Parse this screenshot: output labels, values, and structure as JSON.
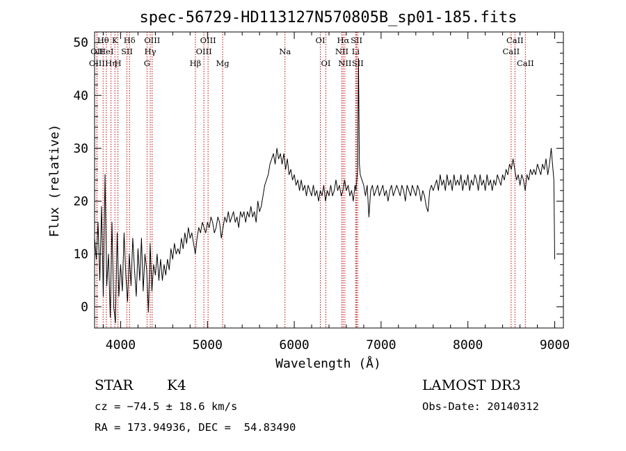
{
  "chart_data": {
    "type": "line",
    "title": "spec-56729-HD113127N570805B_sp01-185.fits",
    "xlabel": "Wavelength (Å)",
    "ylabel": "Flux (relative)",
    "xlim": [
      3700,
      9100
    ],
    "ylim": [
      -4,
      52
    ],
    "xticks": [
      "4000",
      "5000",
      "6000",
      "7000",
      "8000",
      "9000"
    ],
    "yticks": [
      "0",
      "10",
      "20",
      "30",
      "40",
      "50"
    ],
    "grid": false,
    "series": [
      {
        "points": [
          [
            3700,
            13
          ],
          [
            3720,
            9
          ],
          [
            3740,
            16
          ],
          [
            3760,
            5
          ],
          [
            3780,
            19
          ],
          [
            3800,
            2
          ],
          [
            3820,
            25
          ],
          [
            3840,
            4
          ],
          [
            3860,
            10
          ],
          [
            3880,
            -2
          ],
          [
            3900,
            16
          ],
          [
            3920,
            0
          ],
          [
            3940,
            -3
          ],
          [
            3960,
            14
          ],
          [
            3980,
            2
          ],
          [
            4000,
            8
          ],
          [
            4020,
            3
          ],
          [
            4040,
            14
          ],
          [
            4060,
            6
          ],
          [
            4080,
            1
          ],
          [
            4100,
            10
          ],
          [
            4120,
            4
          ],
          [
            4140,
            13
          ],
          [
            4160,
            7
          ],
          [
            4180,
            2
          ],
          [
            4200,
            11
          ],
          [
            4220,
            5
          ],
          [
            4240,
            13
          ],
          [
            4260,
            3
          ],
          [
            4280,
            10
          ],
          [
            4300,
            7
          ],
          [
            4320,
            -1
          ],
          [
            4340,
            12
          ],
          [
            4360,
            3
          ],
          [
            4380,
            8
          ],
          [
            4400,
            6
          ],
          [
            4420,
            10
          ],
          [
            4440,
            5
          ],
          [
            4460,
            9
          ],
          [
            4480,
            5
          ],
          [
            4500,
            8
          ],
          [
            4520,
            6
          ],
          [
            4540,
            9
          ],
          [
            4560,
            7
          ],
          [
            4580,
            11
          ],
          [
            4600,
            9
          ],
          [
            4620,
            12
          ],
          [
            4640,
            10
          ],
          [
            4660,
            11
          ],
          [
            4680,
            10
          ],
          [
            4700,
            13
          ],
          [
            4720,
            11
          ],
          [
            4740,
            14
          ],
          [
            4760,
            12
          ],
          [
            4780,
            15
          ],
          [
            4800,
            13
          ],
          [
            4820,
            14
          ],
          [
            4840,
            12
          ],
          [
            4860,
            10
          ],
          [
            4880,
            13
          ],
          [
            4900,
            15
          ],
          [
            4920,
            14
          ],
          [
            4940,
            16
          ],
          [
            4960,
            15
          ],
          [
            4980,
            14
          ],
          [
            5000,
            16
          ],
          [
            5020,
            15
          ],
          [
            5040,
            17
          ],
          [
            5060,
            16
          ],
          [
            5080,
            14
          ],
          [
            5100,
            15
          ],
          [
            5120,
            17
          ],
          [
            5140,
            16
          ],
          [
            5160,
            13
          ],
          [
            5180,
            15
          ],
          [
            5200,
            17
          ],
          [
            5220,
            16
          ],
          [
            5240,
            18
          ],
          [
            5260,
            16
          ],
          [
            5280,
            17
          ],
          [
            5300,
            18
          ],
          [
            5320,
            16
          ],
          [
            5340,
            17
          ],
          [
            5360,
            15
          ],
          [
            5380,
            18
          ],
          [
            5400,
            17
          ],
          [
            5420,
            18
          ],
          [
            5440,
            16
          ],
          [
            5460,
            18
          ],
          [
            5480,
            17
          ],
          [
            5500,
            19
          ],
          [
            5520,
            17
          ],
          [
            5540,
            18
          ],
          [
            5560,
            16
          ],
          [
            5580,
            20
          ],
          [
            5600,
            18
          ],
          [
            5620,
            19
          ],
          [
            5640,
            21
          ],
          [
            5660,
            23
          ],
          [
            5680,
            24
          ],
          [
            5700,
            25
          ],
          [
            5720,
            27
          ],
          [
            5740,
            28
          ],
          [
            5760,
            29
          ],
          [
            5780,
            27
          ],
          [
            5800,
            30
          ],
          [
            5820,
            28
          ],
          [
            5840,
            29
          ],
          [
            5860,
            27
          ],
          [
            5880,
            29
          ],
          [
            5900,
            26
          ],
          [
            5920,
            28
          ],
          [
            5940,
            25
          ],
          [
            5960,
            26
          ],
          [
            5980,
            24
          ],
          [
            6000,
            25
          ],
          [
            6020,
            23
          ],
          [
            6040,
            24
          ],
          [
            6060,
            22
          ],
          [
            6080,
            24
          ],
          [
            6100,
            22
          ],
          [
            6120,
            23
          ],
          [
            6140,
            21
          ],
          [
            6160,
            23
          ],
          [
            6180,
            22
          ],
          [
            6200,
            21
          ],
          [
            6220,
            23
          ],
          [
            6240,
            21
          ],
          [
            6260,
            22
          ],
          [
            6280,
            20
          ],
          [
            6300,
            22
          ],
          [
            6320,
            21
          ],
          [
            6340,
            23
          ],
          [
            6360,
            20
          ],
          [
            6380,
            22
          ],
          [
            6400,
            21
          ],
          [
            6420,
            23
          ],
          [
            6440,
            21
          ],
          [
            6460,
            22
          ],
          [
            6480,
            24
          ],
          [
            6500,
            22
          ],
          [
            6520,
            23
          ],
          [
            6540,
            21
          ],
          [
            6560,
            22
          ],
          [
            6580,
            24
          ],
          [
            6600,
            22
          ],
          [
            6620,
            23
          ],
          [
            6640,
            21
          ],
          [
            6660,
            22
          ],
          [
            6680,
            20
          ],
          [
            6700,
            23
          ],
          [
            6710,
            22
          ],
          [
            6720,
            24
          ],
          [
            6730,
            26
          ],
          [
            6740,
            47
          ],
          [
            6750,
            27
          ],
          [
            6760,
            25
          ],
          [
            6780,
            24
          ],
          [
            6800,
            23
          ],
          [
            6820,
            21
          ],
          [
            6840,
            23
          ],
          [
            6860,
            17
          ],
          [
            6880,
            22
          ],
          [
            6900,
            23
          ],
          [
            6920,
            21
          ],
          [
            6940,
            22
          ],
          [
            6960,
            23
          ],
          [
            6980,
            21
          ],
          [
            7000,
            22
          ],
          [
            7020,
            23
          ],
          [
            7040,
            21
          ],
          [
            7060,
            22
          ],
          [
            7080,
            20
          ],
          [
            7100,
            22
          ],
          [
            7120,
            23
          ],
          [
            7140,
            21
          ],
          [
            7160,
            22
          ],
          [
            7180,
            23
          ],
          [
            7200,
            22
          ],
          [
            7220,
            21
          ],
          [
            7240,
            23
          ],
          [
            7260,
            22
          ],
          [
            7280,
            20
          ],
          [
            7300,
            23
          ],
          [
            7320,
            22
          ],
          [
            7340,
            21
          ],
          [
            7360,
            23
          ],
          [
            7380,
            22
          ],
          [
            7400,
            21
          ],
          [
            7420,
            23
          ],
          [
            7440,
            22
          ],
          [
            7460,
            20
          ],
          [
            7480,
            22
          ],
          [
            7500,
            21
          ],
          [
            7520,
            19
          ],
          [
            7540,
            18
          ],
          [
            7560,
            22
          ],
          [
            7580,
            23
          ],
          [
            7600,
            22
          ],
          [
            7620,
            23
          ],
          [
            7640,
            24
          ],
          [
            7660,
            22
          ],
          [
            7680,
            25
          ],
          [
            7700,
            23
          ],
          [
            7720,
            24
          ],
          [
            7740,
            22
          ],
          [
            7760,
            25
          ],
          [
            7780,
            23
          ],
          [
            7800,
            24
          ],
          [
            7820,
            22
          ],
          [
            7840,
            25
          ],
          [
            7860,
            23
          ],
          [
            7880,
            24
          ],
          [
            7900,
            23
          ],
          [
            7920,
            25
          ],
          [
            7940,
            22
          ],
          [
            7960,
            24
          ],
          [
            7980,
            23
          ],
          [
            8000,
            25
          ],
          [
            8020,
            22
          ],
          [
            8040,
            24
          ],
          [
            8060,
            23
          ],
          [
            8080,
            25
          ],
          [
            8100,
            24
          ],
          [
            8120,
            22
          ],
          [
            8140,
            25
          ],
          [
            8160,
            23
          ],
          [
            8180,
            24
          ],
          [
            8200,
            22
          ],
          [
            8220,
            25
          ],
          [
            8240,
            23
          ],
          [
            8260,
            24
          ],
          [
            8280,
            22
          ],
          [
            8300,
            24
          ],
          [
            8320,
            23
          ],
          [
            8340,
            25
          ],
          [
            8360,
            24
          ],
          [
            8380,
            23
          ],
          [
            8400,
            25
          ],
          [
            8420,
            24
          ],
          [
            8440,
            26
          ],
          [
            8460,
            25
          ],
          [
            8480,
            27
          ],
          [
            8500,
            26
          ],
          [
            8520,
            28
          ],
          [
            8540,
            26
          ],
          [
            8560,
            24
          ],
          [
            8580,
            25
          ],
          [
            8600,
            23
          ],
          [
            8620,
            25
          ],
          [
            8640,
            24
          ],
          [
            8660,
            22
          ],
          [
            8680,
            25
          ],
          [
            8700,
            24
          ],
          [
            8720,
            26
          ],
          [
            8740,
            25
          ],
          [
            8760,
            26
          ],
          [
            8780,
            25
          ],
          [
            8800,
            27
          ],
          [
            8820,
            26
          ],
          [
            8840,
            25
          ],
          [
            8860,
            27
          ],
          [
            8880,
            26
          ],
          [
            8900,
            28
          ],
          [
            8920,
            25
          ],
          [
            8940,
            27
          ],
          [
            8960,
            30
          ],
          [
            8980,
            26
          ],
          [
            8990,
            24
          ],
          [
            9000,
            9
          ]
        ]
      }
    ],
    "lines": [
      {
        "label": "Hθ",
        "wl": 3798,
        "row": 0
      },
      {
        "label": "OII",
        "wl": 3727,
        "row": 1
      },
      {
        "label": "OIII",
        "wl": 3727,
        "row": 2
      },
      {
        "label": "HeI",
        "wl": 3835,
        "row": 1
      },
      {
        "label": "Hη",
        "wl": 3889,
        "row": 2
      },
      {
        "label": "K",
        "wl": 3934,
        "row": 0
      },
      {
        "label": "H",
        "wl": 3969,
        "row": 2
      },
      {
        "label": "SII",
        "wl": 4072,
        "row": 1
      },
      {
        "label": "Hδ",
        "wl": 4102,
        "row": 0
      },
      {
        "label": "OIII",
        "wl": 4363,
        "row": 0
      },
      {
        "label": "Hγ",
        "wl": 4341,
        "row": 1
      },
      {
        "label": "G",
        "wl": 4304,
        "row": 2
      },
      {
        "label": "Hβ",
        "wl": 4861,
        "row": 2
      },
      {
        "label": "OIII",
        "wl": 5007,
        "row": 0
      },
      {
        "label": "OIII",
        "wl": 4959,
        "row": 1
      },
      {
        "label": "Mg",
        "wl": 5175,
        "row": 2
      },
      {
        "label": "Na",
        "wl": 5893,
        "row": 1
      },
      {
        "label": "OI",
        "wl": 6300,
        "row": 0
      },
      {
        "label": "OI",
        "wl": 6364,
        "row": 2
      },
      {
        "label": "Hα",
        "wl": 6563,
        "row": 0
      },
      {
        "label": "NII",
        "wl": 6548,
        "row": 1
      },
      {
        "label": "NII",
        "wl": 6583,
        "row": 2
      },
      {
        "label": "SII",
        "wl": 6717,
        "row": 0
      },
      {
        "label": "Li",
        "wl": 6708,
        "row": 1
      },
      {
        "label": "SII",
        "wl": 6731,
        "row": 2
      },
      {
        "label": "CaII",
        "wl": 8542,
        "row": 0
      },
      {
        "label": "CaII",
        "wl": 8498,
        "row": 1
      },
      {
        "label": "CaII",
        "wl": 8662,
        "row": 2
      }
    ]
  },
  "info": {
    "object_class": "STAR",
    "subclass": "K4",
    "survey": "LAMOST DR3",
    "cz": "cz = −74.5 ± 18.6 km/s",
    "obs_date": "Obs-Date: 20140312",
    "coords": "RA = 173.94936, DEC =  54.83490"
  },
  "colors": {
    "spectrum": "#000000",
    "line_marker": "#c00000",
    "axis": "#000000"
  }
}
